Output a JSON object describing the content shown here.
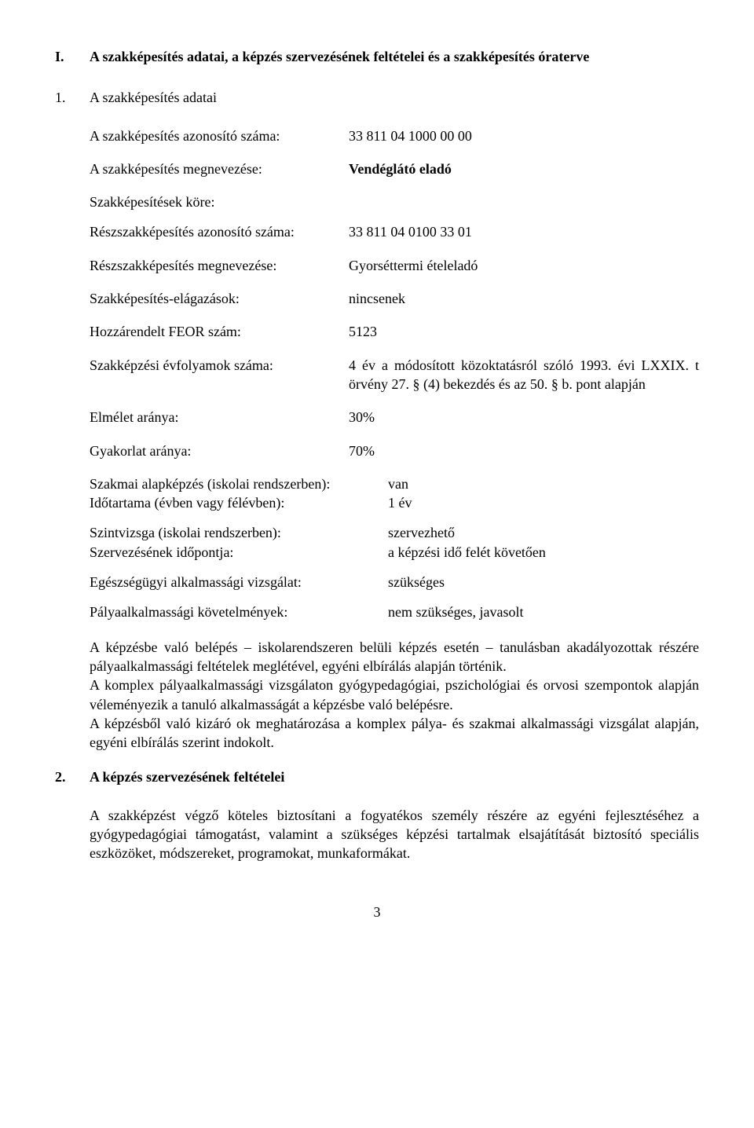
{
  "heading": {
    "roman": "I.",
    "title": "A szakképesítés adatai, a képzés szervezésének feltételei és a szakképesítés óraterve"
  },
  "section1": {
    "num": "1.",
    "title": "A szakképesítés adatai",
    "items": {
      "azonosito_label": "A szakképesítés azonosító száma:",
      "azonosito_value": "33 811 04 1000 00 00",
      "megnevezes_label": "A szakképesítés megnevezése:",
      "megnevezes_value": "Vendéglátó eladó",
      "korok_label": "Szakképesítések köre:",
      "ressz_azonosito_label": "Részszakképesítés azonosító száma:",
      "ressz_azonosito_value": "33 811 04 0100 33 01",
      "ressz_megnevezes_label": "Részszakképesítés megnevezése:",
      "ressz_megnevezes_value": "Gyorséttermi ételeladó",
      "elagazasok_label": "Szakképesítés-elágazások:",
      "elagazasok_value": "nincsenek",
      "feor_label": "Hozzárendelt FEOR szám:",
      "feor_value": "5123",
      "evfolyam_label": "Szakképzési évfolyamok száma:",
      "evfolyam_value": "4 év a módosított közoktatásról szóló 1993. évi LXXIX. t örvény 27. § (4) bekezdés és az 50. § b. pont alapján",
      "elmelet_label": "Elmélet aránya:",
      "elmelet_value": "30%",
      "gyakorlat_label": "Gyakorlat aránya:",
      "gyakorlat_value": "70%",
      "alapkepzes_label": "Szakmai alapképzés (iskolai rendszerben):",
      "alapkepzes_value": "van",
      "idotartam_label": "Időtartama (évben vagy félévben):",
      "idotartam_value": "1 év",
      "szintvizsga_label": "Szintvizsga (iskolai rendszerben):",
      "szintvizsga_value": "szervezhető",
      "szervezes_label": "Szervezésének időpontja:",
      "szervezes_value": "a képzési idő felét követően",
      "egeszseg_label": "Egészségügyi alkalmassági vizsgálat:",
      "egeszseg_value": "szükséges",
      "palya_label": "Pályaalkalmassági követelmények:",
      "palya_value": "nem szükséges, javasolt"
    },
    "para1": "A képzésbe való belépés – iskolarendszeren belüli képzés esetén – tanulásban akadályozottak részére pályaalkalmassági feltételek meglétével, egyéni elbírálás alapján történik.",
    "para2": "A komplex pályaalkalmassági vizsgálaton gyógypedagógiai, pszichológiai és orvosi szempontok alapján véleményezik a tanuló alkalmasságát a képzésbe való belépésre.",
    "para3": "A képzésből való kizáró ok meghatározása a komplex pálya- és szakmai alkalmassági vizsgálat alapján, egyéni elbírálás szerint indokolt."
  },
  "section2": {
    "num": "2.",
    "title": "A képzés szervezésének feltételei",
    "para": "A szakképzést végző köteles biztosítani a fogyatékos személy részére az egyéni fejlesztéséhez a gyógypedagógiai támogatást, valamint a szükséges képzési tartalmak elsajátítását biztosító speciális eszközöket, módszereket, programokat, munkaformákat."
  },
  "pageNumber": "3"
}
